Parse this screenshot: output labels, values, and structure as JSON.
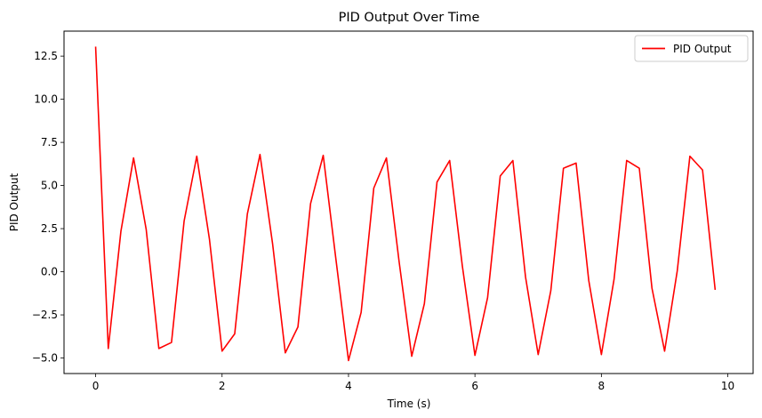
{
  "chart_data": {
    "type": "line",
    "title": "PID Output Over Time",
    "xlabel": "Time (s)",
    "ylabel": "PID Output",
    "xlim": [
      -0.5,
      10.4
    ],
    "ylim": [
      -5.9,
      13.95
    ],
    "xticks": [
      0,
      2,
      4,
      6,
      8,
      10
    ],
    "xtick_labels": [
      "0",
      "2",
      "4",
      "6",
      "8",
      "10"
    ],
    "yticks": [
      -5.0,
      -2.5,
      0.0,
      2.5,
      5.0,
      7.5,
      10.0,
      12.5
    ],
    "ytick_labels": [
      "−5.0",
      "−2.5",
      "0.0",
      "2.5",
      "5.0",
      "7.5",
      "10.0",
      "12.5"
    ],
    "grid": false,
    "legend_position": "top-right",
    "series": [
      {
        "name": "PID Output",
        "color": "#ff0000",
        "x": [
          0,
          0.2,
          0.4,
          0.6,
          0.8,
          1.0,
          1.2,
          1.4,
          1.6,
          1.8,
          2.0,
          2.2,
          2.4,
          2.6,
          2.8,
          3.0,
          3.2,
          3.4,
          3.6,
          3.8,
          4.0,
          4.2,
          4.4,
          4.6,
          4.8,
          5.0,
          5.2,
          5.4,
          5.6,
          5.8,
          6.0,
          6.2,
          6.4,
          6.6,
          6.8,
          7.0,
          7.2,
          7.4,
          7.6,
          7.8,
          8.0,
          8.2,
          8.4,
          8.6,
          8.8,
          9.0,
          9.2,
          9.4,
          9.6,
          9.8
        ],
        "y": [
          13.05,
          -4.45,
          2.35,
          6.6,
          2.45,
          -4.45,
          -4.1,
          2.95,
          6.7,
          1.9,
          -4.6,
          -3.6,
          3.35,
          6.8,
          1.6,
          -4.7,
          -3.2,
          3.95,
          6.75,
          0.75,
          -5.15,
          -2.35,
          4.85,
          6.6,
          0.6,
          -4.9,
          -1.85,
          5.2,
          6.45,
          0.35,
          -4.85,
          -1.5,
          5.55,
          6.45,
          -0.3,
          -4.8,
          -1.1,
          6.0,
          6.3,
          -0.5,
          -4.8,
          -0.45,
          6.45,
          6.0,
          -0.95,
          -4.6,
          0.05,
          6.7,
          5.9,
          -1.05
        ]
      }
    ]
  }
}
